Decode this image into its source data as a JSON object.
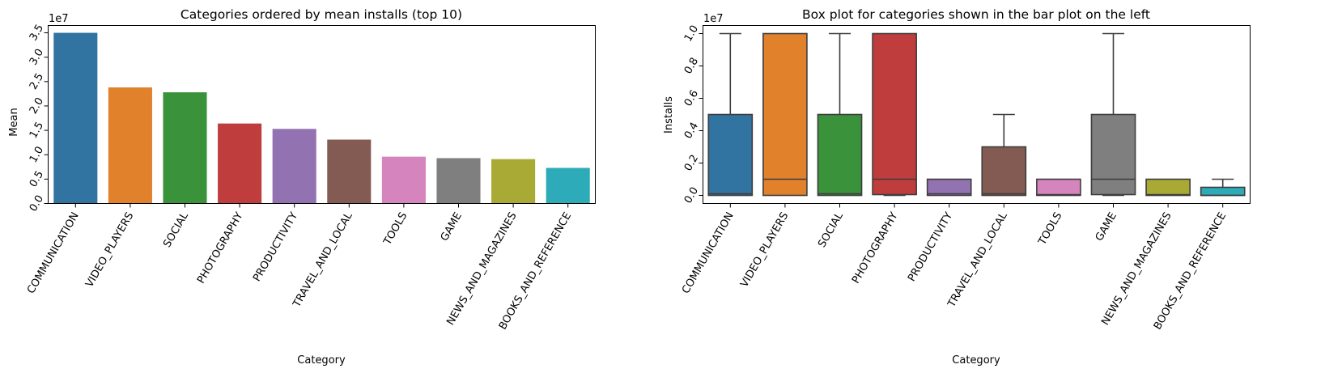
{
  "chart_data": [
    {
      "type": "bar",
      "title": "Categories ordered by mean installs (top 10)",
      "xlabel": "Category",
      "ylabel": "Mean",
      "offset_label": "1e7",
      "scale": 10000000,
      "categories": [
        "COMMUNICATION",
        "VIDEO_PLAYERS",
        "SOCIAL",
        "PHOTOGRAPHY",
        "PRODUCTIVITY",
        "TRAVEL_AND_LOCAL",
        "TOOLS",
        "GAME",
        "NEWS_AND_MAGAZINES",
        "BOOKS_AND_REFERENCE"
      ],
      "values": [
        35000000,
        23800000,
        22800000,
        16400000,
        15300000,
        13100000,
        9600000,
        9300000,
        9100000,
        7300000
      ],
      "ylim": [
        0,
        36500000
      ],
      "yticks": [
        0,
        5000000,
        10000000,
        15000000,
        20000000,
        25000000,
        30000000,
        35000000
      ],
      "ytick_labels": [
        "0.0",
        "0.5",
        "1.0",
        "1.5",
        "2.0",
        "2.5",
        "3.0",
        "3.5"
      ],
      "grid": false,
      "colors": [
        "#3274a1",
        "#e1812c",
        "#3a923a",
        "#c03d3e",
        "#9372b2",
        "#845b53",
        "#d684bd",
        "#7f7f7f",
        "#a9aa35",
        "#2eabb8"
      ]
    },
    {
      "type": "box",
      "title": "Box plot for categories shown in the bar plot on the left",
      "xlabel": "Category",
      "ylabel": "Installs",
      "offset_label": "1e7",
      "scale": 10000000,
      "categories": [
        "COMMUNICATION",
        "VIDEO_PLAYERS",
        "SOCIAL",
        "PHOTOGRAPHY",
        "PRODUCTIVITY",
        "TRAVEL_AND_LOCAL",
        "TOOLS",
        "GAME",
        "NEWS_AND_MAGAZINES",
        "BOOKS_AND_REFERENCE"
      ],
      "boxes": [
        {
          "min": 0,
          "q1": 0,
          "median": 100000,
          "q3": 5000000,
          "max": 10000000
        },
        {
          "min": 0,
          "q1": 0,
          "median": 1000000,
          "q3": 10000000,
          "max": 10000000
        },
        {
          "min": 0,
          "q1": 0,
          "median": 100000,
          "q3": 5000000,
          "max": 10000000
        },
        {
          "min": 0,
          "q1": 50000,
          "median": 1000000,
          "q3": 10000000,
          "max": 10000000
        },
        {
          "min": 0,
          "q1": 0,
          "median": 100000,
          "q3": 1000000,
          "max": 1000000
        },
        {
          "min": 0,
          "q1": 0,
          "median": 100000,
          "q3": 3000000,
          "max": 5000000
        },
        {
          "min": 0,
          "q1": 0,
          "median": 50000,
          "q3": 1000000,
          "max": 1000000
        },
        {
          "min": 0,
          "q1": 50000,
          "median": 1000000,
          "q3": 5000000,
          "max": 10000000
        },
        {
          "min": 0,
          "q1": 0,
          "median": 50000,
          "q3": 1000000,
          "max": 1000000
        },
        {
          "min": 0,
          "q1": 0,
          "median": 0,
          "q3": 500000,
          "max": 1000000
        }
      ],
      "ylim": [
        -500000,
        10500000
      ],
      "yticks": [
        0,
        2000000,
        4000000,
        6000000,
        8000000,
        10000000
      ],
      "ytick_labels": [
        "0.0",
        "0.2",
        "0.4",
        "0.6",
        "0.8",
        "1.0"
      ],
      "grid": false,
      "colors": [
        "#3274a1",
        "#e1812c",
        "#3a923a",
        "#c03d3e",
        "#9372b2",
        "#845b53",
        "#d684bd",
        "#7f7f7f",
        "#a9aa35",
        "#2eabb8"
      ]
    }
  ]
}
